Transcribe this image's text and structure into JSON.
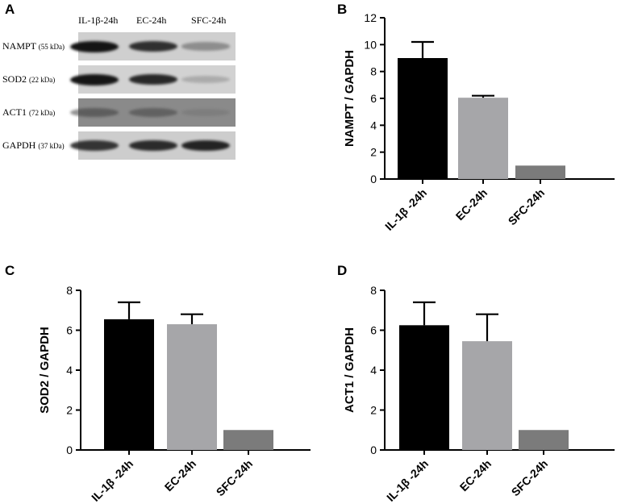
{
  "panels": {
    "a": "A",
    "b": "B",
    "c": "C",
    "d": "D"
  },
  "blot": {
    "lanes": [
      "IL-1β-24h",
      "EC-24h",
      "SFC-24h"
    ],
    "rows": [
      {
        "protein": "NAMPT",
        "kda": "(55 kDa)",
        "bg": "#cfcfcf",
        "band_color": "#141414",
        "intensities": [
          1.0,
          0.85,
          0.35
        ]
      },
      {
        "protein": "SOD2",
        "kda": "(22 kDa)",
        "bg": "#d2d2d2",
        "band_color": "#161616",
        "intensities": [
          1.0,
          0.9,
          0.2
        ]
      },
      {
        "protein": "ACT1",
        "kda": "(72 kDa)",
        "bg": "#8a8a8a",
        "band_color": "#3a3a3a",
        "intensities": [
          0.55,
          0.5,
          0.15
        ]
      },
      {
        "protein": "GAPDH",
        "kda": "(37 kDa)",
        "bg": "#cdcdcd",
        "band_color": "#1a1a1a",
        "intensities": [
          0.85,
          0.9,
          0.95
        ]
      }
    ]
  },
  "chart_data": [
    {
      "panel": "B",
      "type": "bar",
      "categories": [
        "IL-1β -24h",
        "EC-24h",
        "SFC-24h"
      ],
      "values": [
        9.0,
        6.05,
        1.0
      ],
      "errors": [
        1.2,
        0.15,
        0
      ],
      "ylabel": "NAMPT / GAPDH",
      "ylim": [
        0,
        12
      ],
      "yticks": [
        "0",
        "2",
        "4",
        "6",
        "8",
        "10",
        "12"
      ],
      "colors": [
        "#000000",
        "#a6a6a9",
        "#7b7b7b"
      ]
    },
    {
      "panel": "C",
      "type": "bar",
      "categories": [
        "IL-1β -24h",
        "EC-24h",
        "SFC-24h"
      ],
      "values": [
        6.55,
        6.3,
        1.0
      ],
      "errors": [
        0.85,
        0.5,
        0
      ],
      "ylabel": "SOD2 / GAPDH",
      "ylim": [
        0,
        8
      ],
      "yticks": [
        "0",
        "2",
        "4",
        "6",
        "8"
      ],
      "colors": [
        "#000000",
        "#a6a6a9",
        "#7b7b7b"
      ]
    },
    {
      "panel": "D",
      "type": "bar",
      "categories": [
        "IL-1β -24h",
        "EC-24h",
        "SFC-24h"
      ],
      "values": [
        6.25,
        5.45,
        1.0
      ],
      "errors": [
        1.15,
        1.35,
        0
      ],
      "ylabel": "ACT1 / GAPDH",
      "ylim": [
        0,
        8
      ],
      "yticks": [
        "0",
        "2",
        "4",
        "6",
        "8"
      ],
      "colors": [
        "#000000",
        "#a6a6a9",
        "#7b7b7b"
      ]
    }
  ]
}
